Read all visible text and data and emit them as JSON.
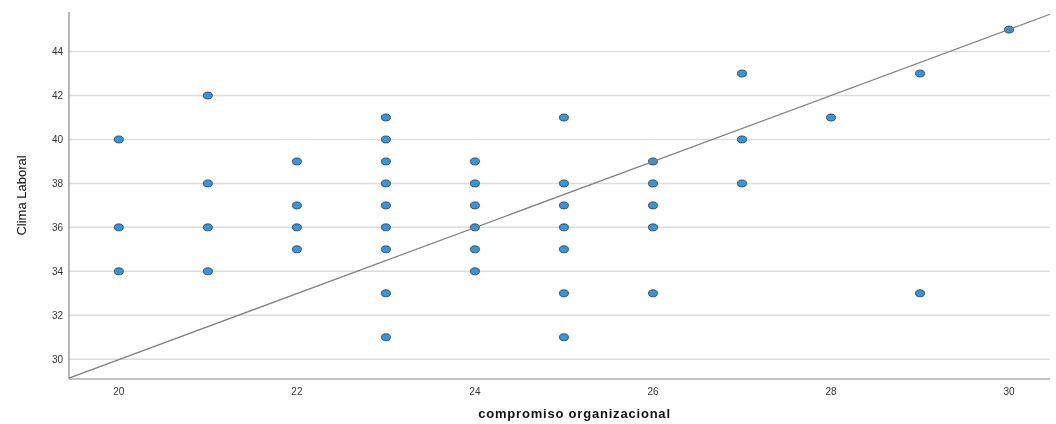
{
  "chart_data": {
    "type": "scatter",
    "xlabel": "compromiso organizacional",
    "ylabel": "Clima Laboral",
    "xlim": [
      19.44,
      30.46
    ],
    "ylim": [
      29.1,
      45.8
    ],
    "xticks": [
      20,
      22,
      24,
      26,
      28,
      30
    ],
    "yticks": [
      30,
      32,
      34,
      36,
      38,
      40,
      42,
      44
    ],
    "grid": "y",
    "marker": "circle",
    "series": [
      {
        "color": "#3a94d6",
        "x": [
          20,
          20,
          20,
          21,
          21,
          21,
          21,
          22,
          22,
          22,
          22,
          23,
          23,
          23,
          23,
          23,
          23,
          23,
          23,
          23,
          24,
          24,
          24,
          24,
          24,
          24,
          25,
          25,
          25,
          25,
          25,
          25,
          25,
          26,
          26,
          26,
          26,
          26,
          27,
          27,
          27,
          28,
          29,
          29,
          30
        ],
        "values": [
          40,
          36,
          34,
          42,
          38,
          36,
          34,
          39,
          37,
          36,
          35,
          41,
          40,
          39,
          38,
          37,
          36,
          35,
          33,
          31,
          39,
          38,
          37,
          36,
          35,
          34,
          41,
          38,
          37,
          36,
          35,
          33,
          31,
          39,
          38,
          37,
          36,
          33,
          43,
          40,
          38,
          41,
          43,
          33,
          45
        ]
      },
      {
        "type": "line",
        "color": "#7f7f7f",
        "marker": "none",
        "x": [
          19.44,
          30.46
        ],
        "values": [
          29.14,
          45.7
        ]
      }
    ]
  }
}
